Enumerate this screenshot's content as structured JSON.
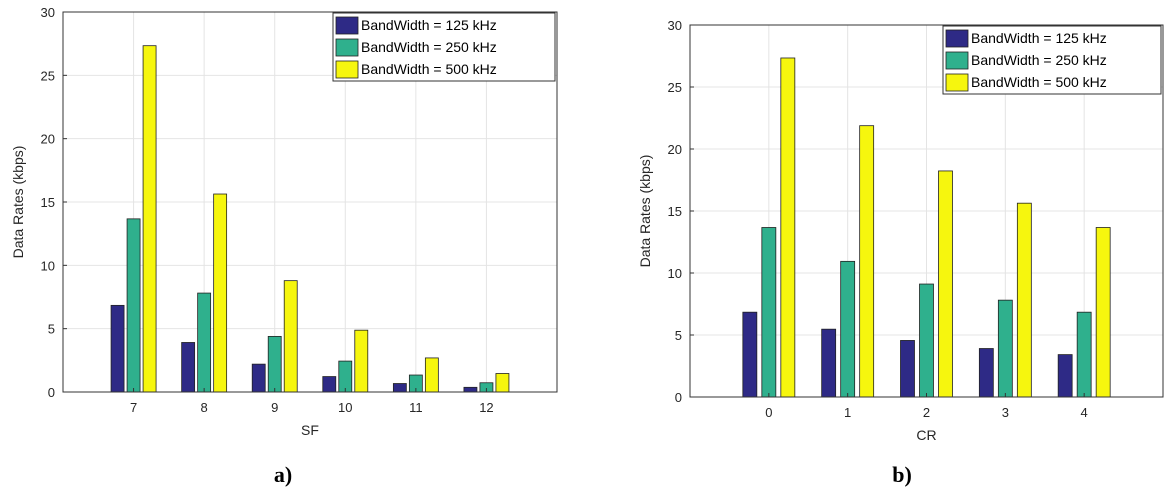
{
  "colors": {
    "bw125": "#2e2a86",
    "bw250": "#2fb08d",
    "bw500": "#f6f60e"
  },
  "panels": [
    {
      "caption": "a)",
      "chart_data": {
        "type": "bar",
        "xlabel": "SF",
        "ylabel": "Data Rates (kbps)",
        "categories": [
          "7",
          "8",
          "9",
          "10",
          "11",
          "12"
        ],
        "xlim": [
          6,
          13
        ],
        "ylim": [
          0,
          30
        ],
        "yticks": [
          "0",
          "5",
          "10",
          "15",
          "20",
          "25",
          "30"
        ],
        "grid": true,
        "legend_position": "top-right",
        "series": [
          {
            "name": "BandWidth = 125 kHz",
            "values": [
              6.84,
              3.91,
              2.2,
              1.22,
              0.67,
              0.37
            ]
          },
          {
            "name": "BandWidth = 250 kHz",
            "values": [
              13.67,
              7.81,
              4.39,
              2.44,
              1.34,
              0.73
            ]
          },
          {
            "name": "BandWidth = 500 kHz",
            "values": [
              27.34,
              15.63,
              8.79,
              4.88,
              2.69,
              1.46
            ]
          }
        ]
      }
    },
    {
      "caption": "b)",
      "chart_data": {
        "type": "bar",
        "xlabel": "CR",
        "ylabel": "Data Rates (kbps)",
        "categories": [
          "0",
          "1",
          "2",
          "3",
          "4"
        ],
        "xlim": [
          -1,
          5
        ],
        "ylim": [
          0,
          30
        ],
        "yticks": [
          "0",
          "5",
          "10",
          "15",
          "20",
          "25",
          "30"
        ],
        "grid": true,
        "legend_position": "top-right",
        "series": [
          {
            "name": "BandWidth = 125 kHz",
            "values": [
              6.84,
              5.47,
              4.56,
              3.91,
              3.42
            ]
          },
          {
            "name": "BandWidth = 250 kHz",
            "values": [
              13.67,
              10.94,
              9.11,
              7.81,
              6.84
            ]
          },
          {
            "name": "BandWidth = 500 kHz",
            "values": [
              27.34,
              21.88,
              18.23,
              15.63,
              13.67
            ]
          }
        ]
      }
    }
  ]
}
